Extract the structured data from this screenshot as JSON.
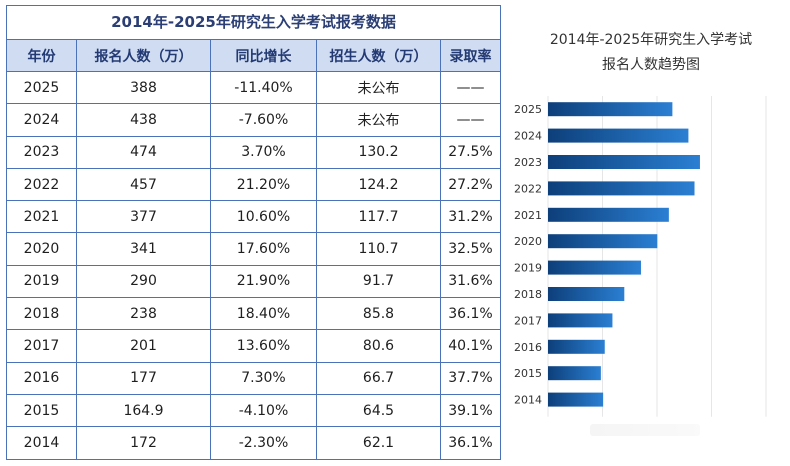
{
  "table": {
    "title": "2014年-2025年研究生入学考试报考数据",
    "headers": [
      "年份",
      "报名人数（万）",
      "同比增长",
      "招生人数（万）",
      "录取率"
    ],
    "rows": [
      [
        "2025",
        "388",
        "-11.40%",
        "未公布",
        "——"
      ],
      [
        "2024",
        "438",
        "-7.60%",
        "未公布",
        "——"
      ],
      [
        "2023",
        "474",
        "3.70%",
        "130.2",
        "27.5%"
      ],
      [
        "2022",
        "457",
        "21.20%",
        "124.2",
        "27.2%"
      ],
      [
        "2021",
        "377",
        "10.60%",
        "117.7",
        "31.2%"
      ],
      [
        "2020",
        "341",
        "17.60%",
        "110.7",
        "32.5%"
      ],
      [
        "2019",
        "290",
        "21.90%",
        "91.7",
        "31.6%"
      ],
      [
        "2018",
        "238",
        "18.40%",
        "85.8",
        "36.1%"
      ],
      [
        "2017",
        "201",
        "13.60%",
        "80.6",
        "40.1%"
      ],
      [
        "2016",
        "177",
        "7.30%",
        "66.7",
        "37.7%"
      ],
      [
        "2015",
        "164.9",
        "-4.10%",
        "64.5",
        "39.1%"
      ],
      [
        "2014",
        "172",
        "-2.30%",
        "62.1",
        "36.1%"
      ]
    ]
  },
  "chart_data": {
    "type": "bar",
    "orientation": "horizontal",
    "title_lines": [
      "2014年-2025年研究生入学考试",
      "报名人数趋势图"
    ],
    "categories": [
      "2025",
      "2024",
      "2023",
      "2022",
      "2021",
      "2020",
      "2019",
      "2018",
      "2017",
      "2016",
      "2015",
      "2014"
    ],
    "values": [
      388,
      438,
      474,
      457,
      377,
      341,
      290,
      238,
      201,
      177,
      164.9,
      172
    ],
    "xlim": [
      0,
      680
    ],
    "grid": true,
    "bar_color_start": "#0d3f7a",
    "bar_color_end": "#2b7fd3"
  },
  "colors": {
    "table_border": "#4a72b8",
    "header_bg": "#cfdcf1",
    "header_text": "#233a74"
  }
}
